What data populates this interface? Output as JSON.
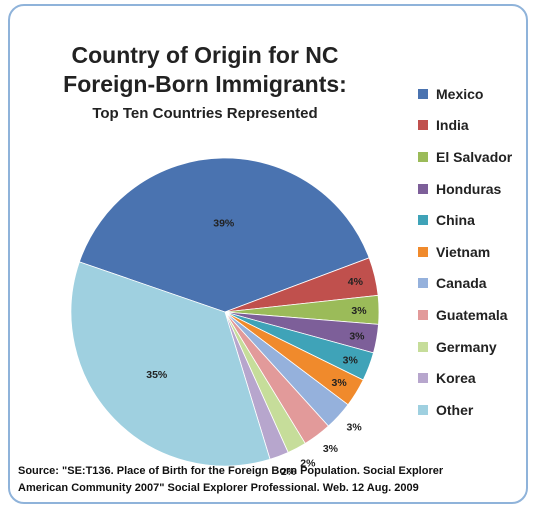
{
  "chart_data": {
    "type": "pie",
    "title_lines": [
      "Country of Origin for NC",
      "Foreign-Born Immigrants:"
    ],
    "subtitle": "Top Ten Countries Represented",
    "slices": [
      {
        "label": "Mexico",
        "value": 39,
        "data_label": "39%",
        "color": "#4a73b0"
      },
      {
        "label": "India",
        "value": 4,
        "data_label": "4%",
        "color": "#c0504d"
      },
      {
        "label": "El Salvador",
        "value": 3,
        "data_label": "3%",
        "color": "#9bbb59"
      },
      {
        "label": "Honduras",
        "value": 3,
        "data_label": "3%",
        "color": "#7d5f99"
      },
      {
        "label": "China",
        "value": 3,
        "data_label": "3%",
        "color": "#3fa3b8"
      },
      {
        "label": "Vietnam",
        "value": 3,
        "data_label": "3%",
        "color": "#f08a2c"
      },
      {
        "label": "Canada",
        "value": 3,
        "data_label": "3%",
        "color": "#95b1dc"
      },
      {
        "label": "Guatemala",
        "value": 3,
        "data_label": "3%",
        "color": "#e29a9a"
      },
      {
        "label": "Germany",
        "value": 2,
        "data_label": "2%",
        "color": "#c6dd9a"
      },
      {
        "label": "Korea",
        "value": 2,
        "data_label": "2%",
        "color": "#b7a6cd"
      },
      {
        "label": "Other",
        "value": 35,
        "data_label": "35%",
        "color": "#9fd0e0"
      }
    ],
    "legend_position": "right",
    "source_lines": [
      "Source:  \"SE:T136. Place of Birth for the Foreign Born Population. Social Explorer",
      "American Community 2007\" Social Explorer Professional. Web. 12 Aug. 2009"
    ]
  }
}
